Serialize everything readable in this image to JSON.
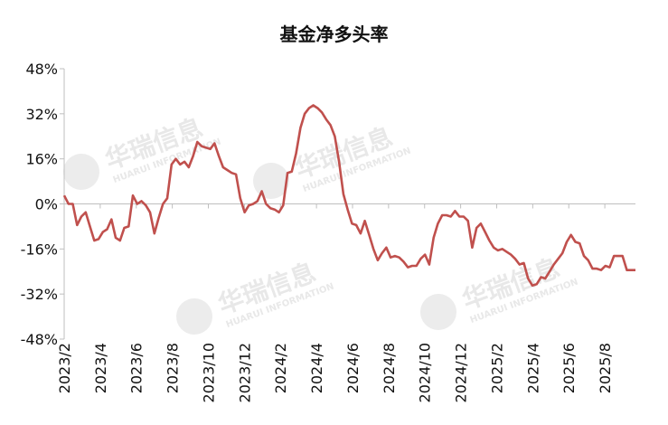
{
  "chart_data": {
    "type": "line",
    "title": "基金净多头率",
    "yticks": [
      "48%",
      "32%",
      "16%",
      "0%",
      "-16%",
      "-32%",
      "-48%"
    ],
    "ylim": [
      -48,
      48
    ],
    "xticks": [
      "2023/2",
      "2023/4",
      "2023/6",
      "2023/8",
      "2023/10",
      "2023/12",
      "2024/2",
      "2024/4",
      "2024/6",
      "2024/8",
      "2024/10",
      "2024/12",
      "2025/2",
      "2025/4",
      "2025/6",
      "2025/8"
    ],
    "grid": false,
    "series": [
      {
        "color": "#c0504d",
        "values": [
          3,
          0,
          0,
          -7.5,
          -4.5,
          -3,
          -8,
          -13,
          -12.5,
          -10,
          -9,
          -5.5,
          -12,
          -13,
          -8.5,
          -8,
          3,
          0,
          1,
          -0.5,
          -3,
          -10.5,
          -5,
          0,
          2,
          14,
          16,
          14,
          15,
          13,
          17,
          22,
          20.5,
          20,
          19.5,
          21.5,
          17,
          13,
          12,
          11,
          10.5,
          2,
          -3,
          -0.5,
          0,
          1,
          4.5,
          0,
          -1.5,
          -2,
          -3,
          -0.5,
          11,
          11.5,
          18,
          27,
          32,
          34,
          35,
          34,
          32.5,
          30,
          28,
          24,
          15,
          3.5,
          -2,
          -7,
          -7.5,
          -10.5,
          -6,
          -11,
          -16,
          -20,
          -17.5,
          -15.5,
          -19,
          -18.5,
          -19,
          -20.5,
          -22.5,
          -22,
          -22,
          -19.5,
          -18,
          -21.5,
          -12,
          -7,
          -4,
          -4,
          -4.5,
          -2.5,
          -4.5,
          -4.5,
          -6,
          -15.5,
          -8.5,
          -7,
          -10,
          -13,
          -15.5,
          -16.5,
          -16,
          -17,
          -18,
          -19.5,
          -21.5,
          -21,
          -26.5,
          -29,
          -28.5,
          -26,
          -26.5,
          -24,
          -21.5,
          -19.5,
          -17.5,
          -13.5,
          -11,
          -13.5,
          -14,
          -18.5,
          -20,
          -23,
          -23,
          -23.5,
          -22,
          -22.5,
          -18.5,
          -18.5,
          -18.5,
          -23.5,
          -23.5,
          -23.5
        ]
      }
    ]
  }
}
